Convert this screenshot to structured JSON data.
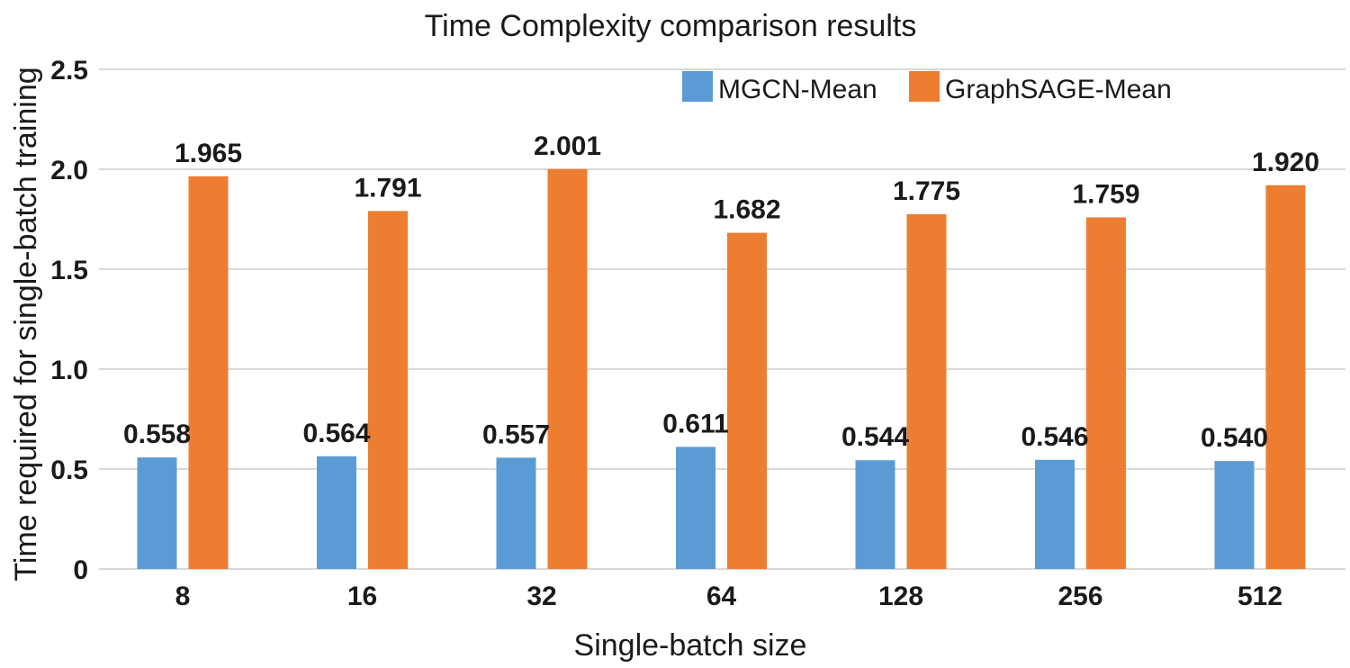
{
  "chart_data": {
    "type": "bar",
    "title": "Time Complexity comparison results",
    "xlabel": "Single-batch size",
    "ylabel": "Time required for single-batch training",
    "categories": [
      "8",
      "16",
      "32",
      "64",
      "128",
      "256",
      "512"
    ],
    "series": [
      {
        "name": "MGCN-Mean",
        "color": "#5b9bd5",
        "values": [
          0.558,
          0.564,
          0.557,
          0.611,
          0.544,
          0.546,
          0.54
        ],
        "labels": [
          "0.558",
          "0.564",
          "0.557",
          "0.611",
          "0.544",
          "0.546",
          "0.540"
        ]
      },
      {
        "name": "GraphSAGE-Mean",
        "color": "#ed7d31",
        "values": [
          1.965,
          1.791,
          2.001,
          1.682,
          1.775,
          1.759,
          1.92
        ],
        "labels": [
          "1.965",
          "1.791",
          "2.001",
          "1.682",
          "1.775",
          "1.759",
          "1.920"
        ]
      }
    ],
    "yticks": [
      0,
      0.5,
      1.0,
      1.5,
      2.0,
      2.5
    ],
    "ytick_labels": [
      "0",
      "0.5",
      "1.0",
      "1.5",
      "2.0",
      "2.5"
    ],
    "ylim": [
      0,
      2.5
    ],
    "grid": true,
    "legend_position": "top-right"
  }
}
